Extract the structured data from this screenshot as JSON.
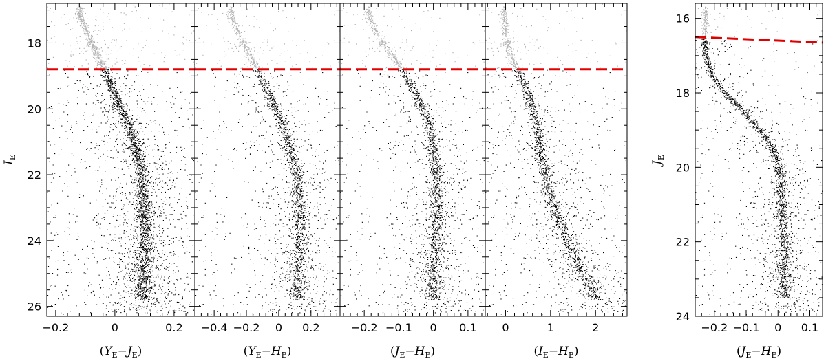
{
  "chart_data": [
    {
      "type": "scatter",
      "panel": 1,
      "xlabel": {
        "open": "(",
        "mag1": "Y",
        "sub1": "E",
        "sep": "−",
        "mag2": "J",
        "sub2": "E",
        "close": ")"
      },
      "ylabel": {
        "mag": "I",
        "sub": "E"
      },
      "xlim": [
        -0.23,
        0.27
      ],
      "ylim": [
        26.3,
        16.8
      ],
      "xticks": [
        -0.2,
        0,
        0.2
      ],
      "xtick_labels": [
        "−0.2",
        "0",
        "0.2"
      ],
      "yticks": [
        18,
        20,
        22,
        24,
        26
      ],
      "ytick_labels": [
        "18",
        "20",
        "22",
        "24",
        "26"
      ],
      "cut": [
        18.8,
        18.8
      ],
      "sequence": [
        [
          -0.12,
          17.2
        ],
        [
          -0.09,
          17.8
        ],
        [
          -0.06,
          18.4
        ],
        [
          -0.035,
          18.8
        ],
        [
          -0.01,
          19.4
        ],
        [
          0.02,
          20.0
        ],
        [
          0.05,
          20.6
        ],
        [
          0.07,
          21.2
        ],
        [
          0.085,
          21.8
        ],
        [
          0.095,
          22.5
        ],
        [
          0.1,
          23.2
        ],
        [
          0.1,
          24.0
        ],
        [
          0.095,
          24.8
        ]
      ],
      "bright_color": "#b0b0b0",
      "faint_color": "#000000",
      "cut_color": "#e00000"
    },
    {
      "type": "scatter",
      "panel": 2,
      "xlabel": {
        "open": "(",
        "mag1": "Y",
        "sub1": "E",
        "sep": "−",
        "mag2": "H",
        "sub2": "E",
        "close": ")"
      },
      "ylabel": null,
      "xlim": [
        -0.52,
        0.38
      ],
      "ylim": [
        26.3,
        16.8
      ],
      "xticks": [
        -0.4,
        -0.2,
        0,
        0.2
      ],
      "xtick_labels": [
        "−0.4",
        "−0.2",
        "0",
        "0.2"
      ],
      "yticks": [
        18,
        20,
        22,
        24,
        26
      ],
      "ytick_labels": [],
      "cut": [
        18.8,
        18.8
      ],
      "sequence": [
        [
          -0.3,
          17.2
        ],
        [
          -0.24,
          17.8
        ],
        [
          -0.18,
          18.4
        ],
        [
          -0.13,
          18.8
        ],
        [
          -0.08,
          19.4
        ],
        [
          -0.02,
          20.0
        ],
        [
          0.03,
          20.6
        ],
        [
          0.07,
          21.2
        ],
        [
          0.1,
          21.8
        ],
        [
          0.12,
          22.5
        ],
        [
          0.13,
          23.2
        ],
        [
          0.13,
          24.0
        ],
        [
          0.12,
          24.8
        ]
      ],
      "bright_color": "#b0b0b0",
      "faint_color": "#000000",
      "cut_color": "#e00000"
    },
    {
      "type": "scatter",
      "panel": 3,
      "xlabel": {
        "open": "(",
        "mag1": "J",
        "sub1": "E",
        "sep": "−",
        "mag2": "H",
        "sub2": "E",
        "close": ")"
      },
      "ylabel": null,
      "xlim": [
        -0.27,
        0.15
      ],
      "ylim": [
        26.3,
        16.8
      ],
      "xticks": [
        -0.2,
        -0.1,
        0,
        0.1
      ],
      "xtick_labels": [
        "−0.2",
        "−0.1",
        "0",
        "0.1"
      ],
      "yticks": [
        18,
        20,
        22,
        24,
        26
      ],
      "ytick_labels": [],
      "cut": [
        18.8,
        18.8
      ],
      "sequence": [
        [
          -0.19,
          17.2
        ],
        [
          -0.16,
          17.8
        ],
        [
          -0.12,
          18.4
        ],
        [
          -0.09,
          18.8
        ],
        [
          -0.06,
          19.4
        ],
        [
          -0.03,
          20.0
        ],
        [
          -0.01,
          20.6
        ],
        [
          0.0,
          21.2
        ],
        [
          0.005,
          21.8
        ],
        [
          0.01,
          22.5
        ],
        [
          0.01,
          23.2
        ],
        [
          0.005,
          24.0
        ],
        [
          0.0,
          24.8
        ]
      ],
      "bright_color": "#b0b0b0",
      "faint_color": "#000000",
      "cut_color": "#e00000"
    },
    {
      "type": "scatter",
      "panel": 4,
      "xlabel": {
        "open": "(",
        "mag1": "I",
        "sub1": "E",
        "sep": "−",
        "mag2": "H",
        "sub2": "E",
        "close": ")"
      },
      "ylabel": null,
      "xlim": [
        -0.45,
        2.7
      ],
      "ylim": [
        26.3,
        16.8
      ],
      "xticks": [
        0,
        1,
        2
      ],
      "xtick_labels": [
        "0",
        "1",
        "2"
      ],
      "yticks": [
        18,
        20,
        22,
        24,
        26
      ],
      "ytick_labels": [],
      "cut": [
        18.8,
        18.8
      ],
      "sequence": [
        [
          -0.05,
          17.2
        ],
        [
          0.0,
          17.8
        ],
        [
          0.1,
          18.4
        ],
        [
          0.25,
          18.8
        ],
        [
          0.45,
          19.4
        ],
        [
          0.6,
          20.0
        ],
        [
          0.7,
          20.6
        ],
        [
          0.8,
          21.5
        ],
        [
          0.9,
          22.2
        ],
        [
          1.05,
          22.9
        ],
        [
          1.25,
          23.6
        ],
        [
          1.45,
          24.3
        ],
        [
          1.7,
          25.0
        ],
        [
          1.95,
          25.5
        ]
      ],
      "bright_color": "#b0b0b0",
      "faint_color": "#000000",
      "cut_color": "#e00000"
    },
    {
      "type": "scatter",
      "panel": 5,
      "xlabel": {
        "open": "(",
        "mag1": "J",
        "sub1": "E",
        "sep": "−",
        "mag2": "H",
        "sub2": "E",
        "close": ")"
      },
      "ylabel": {
        "mag": "J",
        "sub": "E"
      },
      "xlim": [
        -0.26,
        0.14
      ],
      "ylim": [
        24.0,
        15.6
      ],
      "xticks": [
        -0.2,
        -0.1,
        0,
        0.1
      ],
      "xtick_labels": [
        "−0.2",
        "−0.1",
        "0",
        "0.1"
      ],
      "yticks": [
        16,
        18,
        20,
        22,
        24
      ],
      "ytick_labels": [
        "16",
        "18",
        "20",
        "22",
        "24"
      ],
      "cut": [
        16.5,
        16.65
      ],
      "sequence": [
        [
          -0.23,
          16.9
        ],
        [
          -0.21,
          17.5
        ],
        [
          -0.17,
          18.0
        ],
        [
          -0.12,
          18.4
        ],
        [
          -0.08,
          18.8
        ],
        [
          -0.04,
          19.2
        ],
        [
          -0.01,
          19.6
        ],
        [
          0.005,
          20.2
        ],
        [
          0.01,
          20.8
        ],
        [
          0.015,
          21.5
        ],
        [
          0.02,
          22.2
        ],
        [
          0.02,
          23.0
        ]
      ],
      "bright_color": "#b0b0b0",
      "faint_color": "#000000",
      "cut_color": "#e00000"
    }
  ]
}
